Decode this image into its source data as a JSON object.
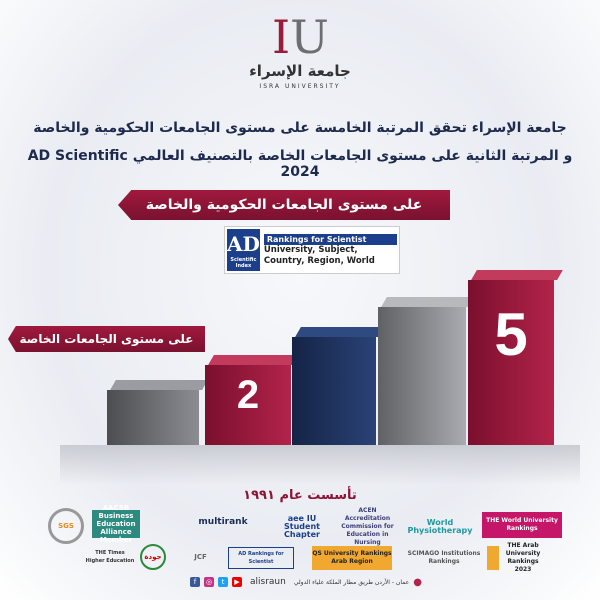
{
  "logo": {
    "mark_i": "I",
    "mark_u": "U",
    "arabic": "جامعة الإسراء",
    "english": "ISRA UNIVERSITY"
  },
  "headline": {
    "line1": "جامعة الإسراء تحقق المرتبة الخامسة على مستوى الجامعات الحكومية والخاصة",
    "line2": "و المرتبة الثانية على مستوى الجامعات الخاصة بالتصنيف العالمي AD Scientific 2024"
  },
  "ribbons": {
    "public_private": "على مستوى الجامعات الحكومية والخاصة",
    "private": "على مستوى الجامعات الخاصة"
  },
  "ad_logo": {
    "mark": "AD",
    "mark_sub": "Scientific Index",
    "title": "Rankings for Scientist",
    "subtitle": "University, Subject, Country, Region, World"
  },
  "ranks": {
    "private": "2",
    "public_private": "5"
  },
  "colors": {
    "maroon": "#8e1436",
    "navy": "#1b2d57",
    "gray": "#7d7f84"
  },
  "founded": "تأسست عام ١٩٩١",
  "partners": [
    "SGS",
    "AACSB Business Education Alliance Member",
    "multirank",
    "aee IU Student Chapter",
    "ACEN Accreditation Commission for Education in Nursing",
    "World Physiotherapy",
    "THE World University Rankings",
    "THE Times Higher Education",
    "جودة",
    "JCF",
    "AD Rankings for Scientist",
    "QS University Rankings Arab Region",
    "SCIMAGO Institutions Rankings",
    "THE Arab University Rankings 2023"
  ],
  "contact": {
    "handle": "alisraun",
    "address": "عمان - الأردن طريق مطار الملكة علياء الدولي",
    "social": [
      "facebook-icon",
      "instagram-icon",
      "twitter-icon",
      "youtube-icon"
    ]
  }
}
